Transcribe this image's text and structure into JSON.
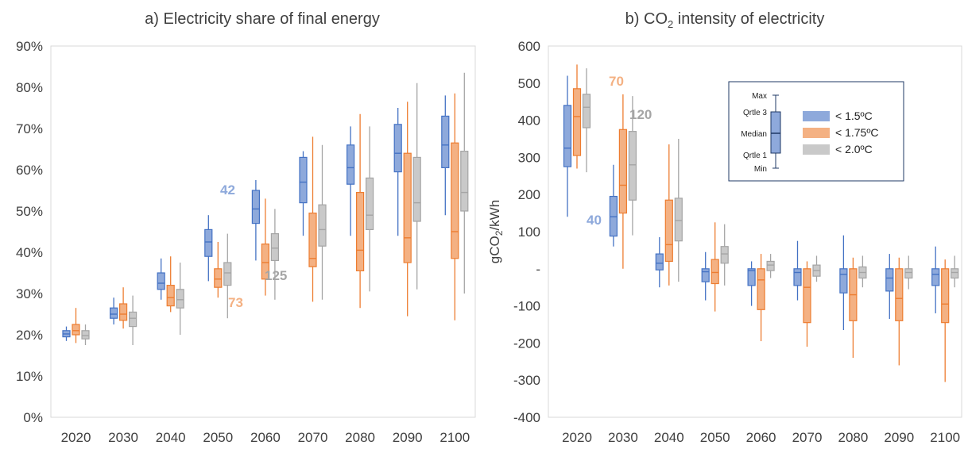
{
  "colors": {
    "c15": "#4472C4",
    "c175": "#ED7D31",
    "c20": "#A5A5A5",
    "f15": "#8EA9DB",
    "f175": "#F4B183",
    "f20": "#C9C9C9",
    "count15": "#8EA9DB",
    "count175": "#F4B183",
    "count20": "#A5A5A5"
  },
  "legend": {
    "items": [
      "< 1.5ºC",
      "< 1.75ºC",
      "< 2.0ºC"
    ],
    "key_labels": [
      "Max",
      "Qrtle 3",
      "Median",
      "Qrtle 1",
      "Min"
    ]
  },
  "chart_data": [
    {
      "type": "box",
      "title": "a) Electricity share of final energy",
      "xlabel": "",
      "ylabel": "",
      "categories": [
        "2020",
        "2030",
        "2040",
        "2050",
        "2060",
        "2070",
        "2080",
        "2090",
        "2100"
      ],
      "yticks": [
        "0%",
        "10%",
        "20%",
        "30%",
        "40%",
        "50%",
        "60%",
        "70%",
        "80%",
        "90%"
      ],
      "ylim": [
        0,
        90
      ],
      "grid": false,
      "series": [
        {
          "name": "< 1.5ºC",
          "boxes": [
            [
              18.5,
              19.5,
              20.2,
              21,
              22
            ],
            [
              22.5,
              24,
              25,
              26.5,
              29
            ],
            [
              28.5,
              31,
              32.5,
              35,
              38.5
            ],
            [
              33,
              39,
              42.5,
              45.5,
              49
            ],
            [
              38,
              47,
              50.5,
              55,
              57.5
            ],
            [
              44,
              52,
              57,
              63,
              64.5
            ],
            [
              44,
              56.5,
              60.5,
              66,
              70.5
            ],
            [
              44,
              59.5,
              64,
              71,
              75
            ],
            [
              49,
              60.5,
              66,
              73,
              78
            ]
          ]
        },
        {
          "name": "< 1.75ºC",
          "boxes": [
            [
              18,
              20,
              21,
              22.5,
              26.5
            ],
            [
              21.5,
              23.5,
              25,
              27.5,
              31.5
            ],
            [
              25.5,
              27,
              29,
              32,
              39
            ],
            [
              29,
              31.5,
              33.5,
              36,
              42.5
            ],
            [
              29.5,
              33.5,
              37.5,
              42,
              53
            ],
            [
              28,
              36.5,
              38.5,
              49.5,
              68
            ],
            [
              26.5,
              35.5,
              40.5,
              54.5,
              73.5
            ],
            [
              24.5,
              37.5,
              43.5,
              64,
              76.5
            ],
            [
              23.5,
              38.5,
              45,
              66.5,
              78.5
            ]
          ]
        },
        {
          "name": "< 2.0ºC",
          "boxes": [
            [
              17.5,
              19,
              19.8,
              21,
              22.5
            ],
            [
              17.5,
              22,
              24,
              25.5,
              29.5
            ],
            [
              20,
              26.5,
              28.5,
              31,
              37.5
            ],
            [
              24,
              32,
              35,
              37.5,
              44.5
            ],
            [
              28.5,
              38,
              41,
              44.5,
              50.5
            ],
            [
              28.5,
              41.5,
              45.5,
              51.5,
              66
            ],
            [
              30.5,
              45.5,
              49,
              58,
              70.5
            ],
            [
              31,
              47.5,
              52,
              63,
              81
            ],
            [
              30,
              50,
              54.5,
              64.5,
              83.5
            ]
          ]
        }
      ],
      "annotations": [
        {
          "text": "42",
          "series": "< 1.5ºC"
        },
        {
          "text": "73",
          "series": "< 1.75ºC"
        },
        {
          "text": "125",
          "series": "< 2.0ºC"
        }
      ]
    },
    {
      "type": "box",
      "title_main": "b) CO",
      "title_sub": "2",
      "title_rest": " intensity of electricity",
      "xlabel": "",
      "ylabel_main": "gCO",
      "ylabel_sub": "2",
      "ylabel_rest": "/kWh",
      "categories": [
        "2020",
        "2030",
        "2040",
        "2050",
        "2060",
        "2070",
        "2080",
        "2090",
        "2100"
      ],
      "yticks": [
        "-400",
        "-300",
        "-200",
        "-100",
        "-",
        "100",
        "200",
        "300",
        "400",
        "500",
        "600"
      ],
      "ylim": [
        -400,
        600
      ],
      "grid": false,
      "series": [
        {
          "name": "< 1.5ºC",
          "boxes": [
            [
              140,
              275,
              325,
              440,
              520
            ],
            [
              60,
              88,
              140,
              195,
              280
            ],
            [
              -50,
              -3,
              15,
              40,
              85
            ],
            [
              -85,
              -35,
              -8,
              0,
              45
            ],
            [
              -100,
              -45,
              -5,
              0,
              20
            ],
            [
              -85,
              -45,
              -10,
              0,
              75
            ],
            [
              -165,
              -65,
              -15,
              0,
              90
            ],
            [
              -135,
              -60,
              -25,
              0,
              40
            ],
            [
              -120,
              -45,
              -15,
              0,
              60
            ]
          ]
        },
        {
          "name": "< 1.75ºC",
          "boxes": [
            [
              270,
              305,
              410,
              485,
              550
            ],
            [
              0,
              150,
              225,
              375,
              470
            ],
            [
              -45,
              20,
              65,
              185,
              335
            ],
            [
              -115,
              -40,
              -10,
              25,
              125
            ],
            [
              -195,
              -110,
              -30,
              0,
              40
            ],
            [
              -210,
              -145,
              -50,
              0,
              20
            ],
            [
              -240,
              -140,
              -70,
              0,
              30
            ],
            [
              -260,
              -140,
              -80,
              0,
              30
            ],
            [
              -305,
              -145,
              -95,
              0,
              25
            ]
          ]
        },
        {
          "name": "< 2.0ºC",
          "boxes": [
            [
              260,
              380,
              435,
              470,
              540
            ],
            [
              90,
              185,
              280,
              370,
              465
            ],
            [
              -35,
              75,
              130,
              190,
              350
            ],
            [
              -45,
              15,
              40,
              60,
              120
            ],
            [
              -25,
              -5,
              10,
              20,
              40
            ],
            [
              -35,
              -20,
              -5,
              10,
              35
            ],
            [
              -50,
              -25,
              -10,
              5,
              35
            ],
            [
              -55,
              -25,
              -10,
              0,
              35
            ],
            [
              -50,
              -25,
              -10,
              0,
              35
            ]
          ]
        }
      ],
      "annotations": [
        {
          "text": "40",
          "series": "< 1.5ºC"
        },
        {
          "text": "70",
          "series": "< 1.75ºC"
        },
        {
          "text": "120",
          "series": "< 2.0ºC"
        }
      ]
    }
  ]
}
